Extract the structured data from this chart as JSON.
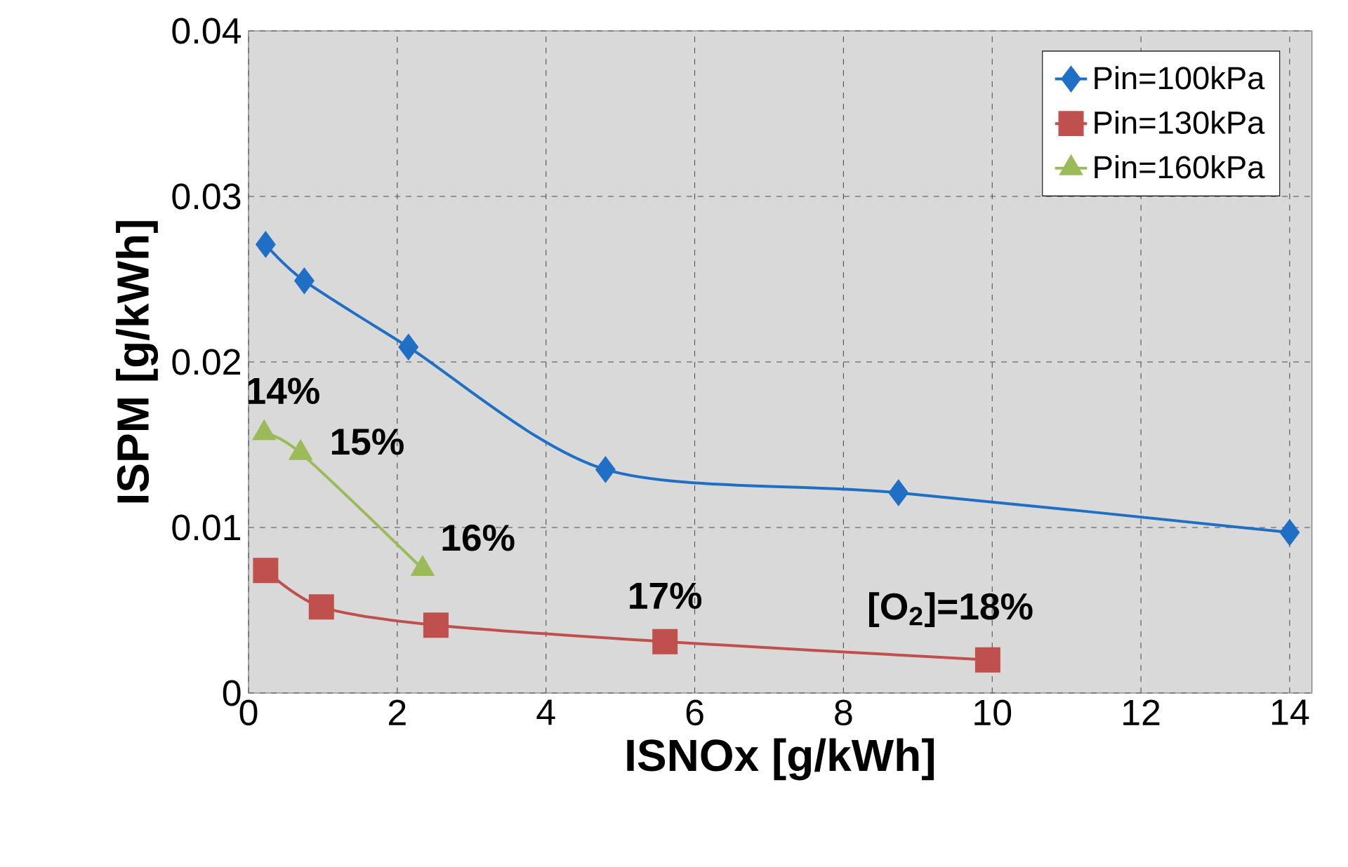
{
  "chart_data": {
    "type": "line",
    "xlabel": "ISNOx [g/kWh]",
    "ylabel": "ISPM [g/kWh]",
    "xlim": [
      0,
      14.3
    ],
    "xticks": [
      0,
      2,
      4,
      6,
      8,
      10,
      12,
      14
    ],
    "ylim": [
      0,
      0.04
    ],
    "yticks": [
      {
        "value": 0,
        "label": "0"
      },
      0.01,
      0.02,
      0.03,
      0.04
    ],
    "grid": true,
    "legend": "top right",
    "series": [
      {
        "name": "Pin=100kPa",
        "color": "#1f6fc4",
        "marker": "diamond",
        "x": [
          0.23,
          0.75,
          2.15,
          4.8,
          8.74,
          14.0
        ],
        "values": [
          0.0271,
          0.0249,
          0.0209,
          0.0135,
          0.0121,
          0.0097
        ]
      },
      {
        "name": "Pin=130kPa",
        "color": "#c0504d",
        "marker": "square",
        "x": [
          0.23,
          0.98,
          2.52,
          5.6,
          9.94
        ],
        "values": [
          0.0074,
          0.0052,
          0.0041,
          0.0031,
          0.002
        ]
      },
      {
        "name": "Pin=160kPa",
        "color": "#9bbb59",
        "marker": "triangle",
        "x": [
          0.21,
          0.7,
          2.34
        ],
        "values": [
          0.0157,
          0.0145,
          0.0075
        ]
      }
    ],
    "annotations": [
      {
        "text": "14%",
        "x": 0.21,
        "y": 0.0157
      },
      {
        "text": "15%",
        "x": 0.7,
        "y": 0.0145
      },
      {
        "text": "16%",
        "x": 2.34,
        "y": 0.0075
      },
      {
        "text": "17%",
        "x": 5.6,
        "y": 0.0031
      },
      {
        "text": "[O$_{2}$]=18%",
        "x": 9.94,
        "y": 0.002
      }
    ]
  }
}
